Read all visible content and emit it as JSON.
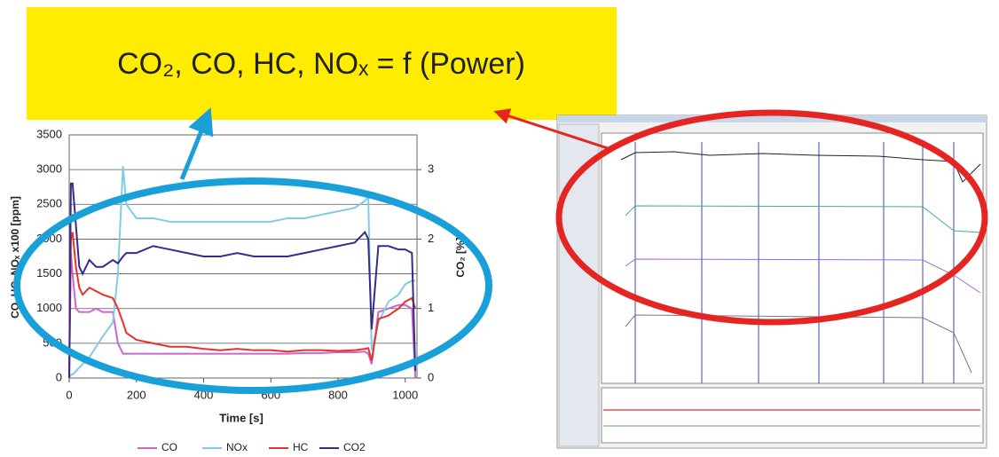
{
  "headline": "CO₂, CO, HC, NOₓ = f (Power)",
  "chart_data": {
    "type": "line",
    "x_label": "Time [s]",
    "y_label": "CO, HC, NOₓ x100 [ppm]",
    "y2_label": "CO₂ [%]",
    "x": [
      0,
      5,
      10,
      20,
      30,
      40,
      60,
      80,
      100,
      130,
      145,
      160,
      170,
      200,
      250,
      300,
      350,
      400,
      450,
      500,
      550,
      600,
      650,
      700,
      750,
      800,
      850,
      880,
      890,
      900,
      920,
      950,
      980,
      1000,
      1020,
      1030
    ],
    "xlim": [
      0,
      1035
    ],
    "xticks": [
      0,
      200,
      400,
      600,
      800,
      1000
    ],
    "ylim": [
      0,
      3500
    ],
    "yticks": [
      0,
      500,
      1000,
      1500,
      2000,
      2500,
      3000,
      3500
    ],
    "y2lim": [
      0,
      3.5
    ],
    "y2ticks": [
      0,
      1,
      2,
      3
    ],
    "grid": true,
    "legend": "bottom",
    "series": [
      {
        "name": "CO",
        "color": "#cc66cc",
        "values": [
          0,
          1800,
          1500,
          1000,
          950,
          950,
          950,
          1000,
          950,
          950,
          500,
          350,
          350,
          350,
          350,
          350,
          350,
          350,
          350,
          350,
          350,
          350,
          350,
          360,
          360,
          370,
          370,
          380,
          350,
          200,
          950,
          1000,
          1050,
          1050,
          1000,
          0
        ]
      },
      {
        "name": "NOx",
        "color": "#80cce6",
        "values": [
          0,
          50,
          50,
          100,
          150,
          200,
          300,
          450,
          600,
          800,
          1500,
          3050,
          2500,
          2300,
          2300,
          2250,
          2250,
          2250,
          2250,
          2250,
          2250,
          2250,
          2300,
          2300,
          2350,
          2400,
          2450,
          2550,
          2600,
          400,
          800,
          1100,
          1200,
          1350,
          1400,
          1400
        ]
      },
      {
        "name": "HC",
        "color": "#e8312a",
        "values": [
          0,
          2000,
          2100,
          1600,
          1300,
          1200,
          1300,
          1250,
          1200,
          1150,
          1000,
          800,
          650,
          550,
          500,
          450,
          450,
          420,
          400,
          420,
          400,
          400,
          380,
          400,
          400,
          390,
          400,
          420,
          430,
          250,
          850,
          900,
          1000,
          1100,
          1150,
          1000
        ]
      },
      {
        "name": "CO2",
        "color": "#3a2a8a",
        "axis": "y2",
        "values": [
          0,
          2.8,
          2.8,
          2.2,
          1.6,
          1.5,
          1.7,
          1.6,
          1.6,
          1.7,
          1.65,
          1.75,
          1.8,
          1.8,
          1.9,
          1.85,
          1.8,
          1.75,
          1.75,
          1.8,
          1.75,
          1.75,
          1.75,
          1.8,
          1.85,
          1.9,
          1.95,
          2.1,
          2.0,
          0.7,
          1.9,
          1.9,
          1.85,
          1.85,
          1.8,
          0.1
        ]
      }
    ]
  }
}
